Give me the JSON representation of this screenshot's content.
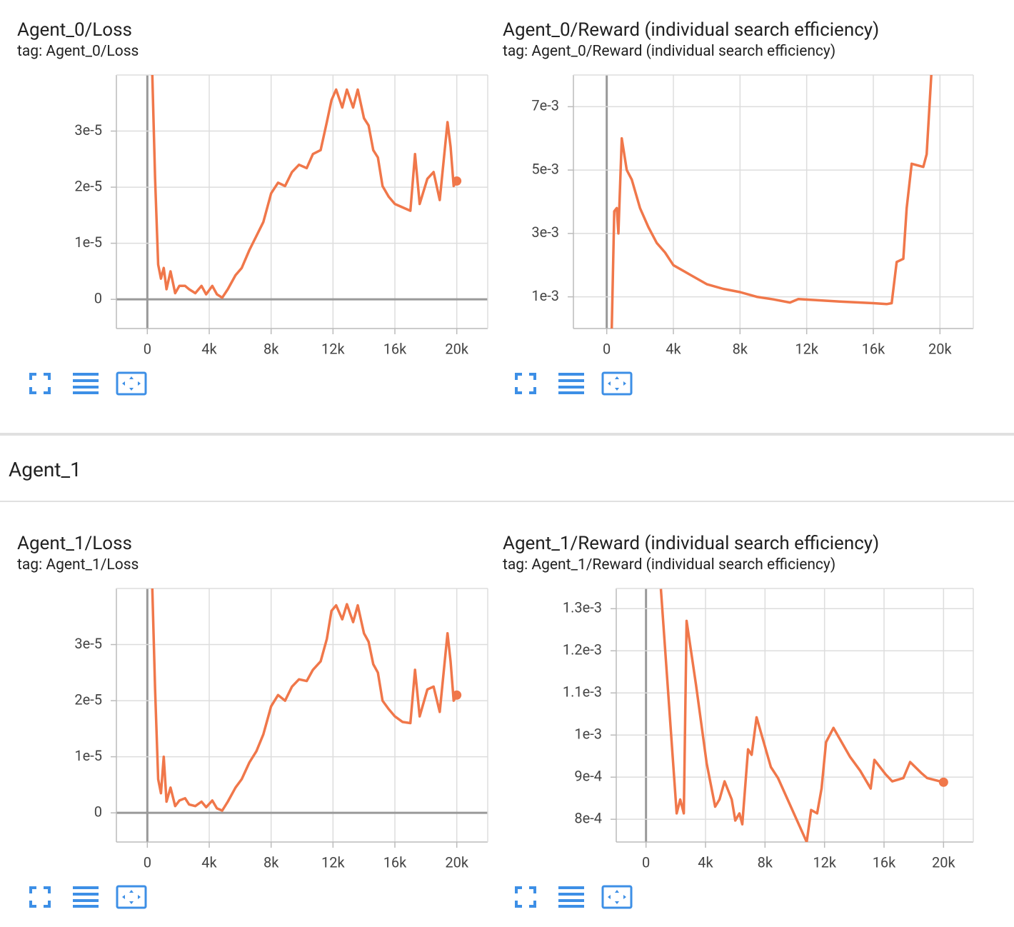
{
  "section": "Agent_1",
  "chart_data": [
    {
      "type": "line",
      "title": "Agent_0/Loss",
      "subtitle": "tag: Agent_0/Loss",
      "color": "#f0774a",
      "xlim": [
        -2000,
        22000
      ],
      "ylim": [
        -5.2e-06,
        4e-05
      ],
      "xticks": [
        0,
        {
          "value": 4000,
          "label": "4k"
        },
        {
          "value": 8000,
          "label": "8k"
        },
        {
          "value": 12000,
          "label": "12k"
        },
        {
          "value": 16000,
          "label": "16k"
        },
        {
          "value": 20000,
          "label": "20k"
        }
      ],
      "yticks": [
        0,
        {
          "value": 1e-05,
          "label": "1e-5"
        },
        {
          "value": 2e-05,
          "label": "2e-5"
        },
        {
          "value": 3e-05,
          "label": "3e-5"
        }
      ],
      "x": [
        320,
        500,
        700,
        880,
        1060,
        1240,
        1500,
        1800,
        2070,
        2440,
        2700,
        3100,
        3500,
        3800,
        4200,
        4500,
        4840,
        5200,
        5700,
        6100,
        6600,
        7050,
        7500,
        8000,
        8450,
        8900,
        9350,
        9800,
        10300,
        10700,
        11200,
        11600,
        11900,
        12200,
        12600,
        12900,
        13300,
        13600,
        14000,
        14300,
        14600,
        14900,
        15200,
        15600,
        16000,
        16500,
        17000,
        17300,
        17600,
        18100,
        18500,
        18900,
        19400,
        19600,
        19800,
        20000
      ],
      "values": [
        4e-05,
        2.15e-05,
        6.2e-06,
        3.7e-06,
        5.6e-06,
        1.8e-06,
        5e-06,
        1.1e-06,
        2.4e-06,
        2.4e-06,
        1.8e-06,
        1.1e-06,
        2.4e-06,
        9e-07,
        2.4e-06,
        9e-07,
        3e-07,
        1.8e-06,
        4.3e-06,
        5.6e-06,
        8.8e-06,
        1.13e-05,
        1.38e-05,
        1.89e-05,
        2.08e-05,
        2.02e-05,
        2.27e-05,
        2.4e-05,
        2.34e-05,
        2.59e-05,
        2.66e-05,
        3.16e-05,
        3.55e-05,
        3.74e-05,
        3.42e-05,
        3.74e-05,
        3.42e-05,
        3.74e-05,
        3.23e-05,
        3.1e-05,
        2.66e-05,
        2.53e-05,
        2.02e-05,
        1.83e-05,
        1.7e-05,
        1.64e-05,
        1.58e-05,
        2.59e-05,
        1.7e-05,
        2.15e-05,
        2.27e-05,
        1.77e-05,
        3.16e-05,
        2.72e-05,
        2.02e-05,
        2.11e-05
      ]
    },
    {
      "type": "line",
      "title": "Agent_0/Reward (individual search efficiency)",
      "subtitle": "tag: Agent_0/Reward (individual search efficiency)",
      "color": "#f0774a",
      "xlim": [
        -2000,
        22000
      ],
      "ylim": [
        0,
        0.008
      ],
      "xticks": [
        0,
        {
          "value": 4000,
          "label": "4k"
        },
        {
          "value": 8000,
          "label": "8k"
        },
        {
          "value": 12000,
          "label": "12k"
        },
        {
          "value": 16000,
          "label": "16k"
        },
        {
          "value": 20000,
          "label": "20k"
        }
      ],
      "yticks": [
        {
          "value": 0.001,
          "label": "1e-3"
        },
        {
          "value": 0.003,
          "label": "3e-3"
        },
        {
          "value": 0.005,
          "label": "5e-3"
        },
        {
          "value": 0.007,
          "label": "7e-3"
        }
      ],
      "x": [
        300,
        450,
        600,
        700,
        900,
        1200,
        1500,
        2000,
        2500,
        3000,
        3500,
        4000,
        5000,
        6000,
        7000,
        8000,
        9000,
        10000,
        11000,
        11500,
        12500,
        14000,
        16000,
        16800,
        17100,
        17400,
        17800,
        18000,
        18300,
        19000,
        19200,
        19500
      ],
      "values": [
        0,
        0.0037,
        0.0038,
        0.003,
        0.006,
        0.005,
        0.0047,
        0.0038,
        0.0032,
        0.0027,
        0.0024,
        0.002,
        0.0017,
        0.0014,
        0.00125,
        0.00115,
        0.001,
        0.00092,
        0.00082,
        0.00093,
        0.0009,
        0.00085,
        0.0008,
        0.00077,
        0.0008,
        0.0021,
        0.0022,
        0.0038,
        0.0052,
        0.0051,
        0.0055,
        0.0082
      ]
    },
    {
      "type": "line",
      "title": "Agent_1/Loss",
      "subtitle": "tag: Agent_1/Loss",
      "color": "#f0774a",
      "xlim": [
        -2000,
        22000
      ],
      "ylim": [
        -5.2e-06,
        4e-05
      ],
      "xticks": [
        0,
        {
          "value": 4000,
          "label": "4k"
        },
        {
          "value": 8000,
          "label": "8k"
        },
        {
          "value": 12000,
          "label": "12k"
        },
        {
          "value": 16000,
          "label": "16k"
        },
        {
          "value": 20000,
          "label": "20k"
        }
      ],
      "yticks": [
        0,
        {
          "value": 1e-05,
          "label": "1e-5"
        },
        {
          "value": 2e-05,
          "label": "2e-5"
        },
        {
          "value": 3e-05,
          "label": "3e-5"
        }
      ],
      "x": [
        320,
        500,
        700,
        880,
        1060,
        1240,
        1500,
        1800,
        2070,
        2440,
        2700,
        3100,
        3500,
        3800,
        4200,
        4500,
        4840,
        5200,
        5700,
        6100,
        6600,
        7050,
        7500,
        8000,
        8450,
        8900,
        9350,
        9800,
        10300,
        10700,
        11200,
        11600,
        11900,
        12200,
        12600,
        12900,
        13300,
        13600,
        14000,
        14300,
        14600,
        14900,
        15200,
        15600,
        16000,
        16500,
        17000,
        17300,
        17600,
        18100,
        18500,
        18900,
        19400,
        19600,
        19800,
        20000
      ],
      "values": [
        4e-05,
        2.2e-05,
        6e-06,
        3.5e-06,
        1e-05,
        2e-06,
        4.5e-06,
        1.2e-06,
        2.2e-06,
        2.6e-06,
        1.5e-06,
        1.2e-06,
        2e-06,
        1e-06,
        2.2e-06,
        8e-07,
        4e-07,
        2e-06,
        4.5e-06,
        6e-06,
        9e-06,
        1.1e-05,
        1.4e-05,
        1.9e-05,
        2.1e-05,
        2e-05,
        2.25e-05,
        2.38e-05,
        2.35e-05,
        2.55e-05,
        2.7e-05,
        3.1e-05,
        3.6e-05,
        3.7e-05,
        3.45e-05,
        3.72e-05,
        3.4e-05,
        3.7e-05,
        3.2e-05,
        3.05e-05,
        2.65e-05,
        2.5e-05,
        2e-05,
        1.85e-05,
        1.72e-05,
        1.62e-05,
        1.6e-05,
        2.55e-05,
        1.72e-05,
        2.2e-05,
        2.25e-05,
        1.8e-05,
        3.2e-05,
        2.7e-05,
        2e-05,
        2.1e-05
      ]
    },
    {
      "type": "line",
      "title": "Agent_1/Reward (individual search efficiency)",
      "subtitle": "tag: Agent_1/Reward (individual search efficiency)",
      "color": "#f0774a",
      "xlim": [
        -2000,
        22000
      ],
      "ylim": [
        0.000746,
        0.001348
      ],
      "xticks": [
        0,
        {
          "value": 4000,
          "label": "4k"
        },
        {
          "value": 8000,
          "label": "8k"
        },
        {
          "value": 12000,
          "label": "12k"
        },
        {
          "value": 16000,
          "label": "16k"
        },
        {
          "value": 20000,
          "label": "20k"
        }
      ],
      "yticks": [
        {
          "value": 0.0008,
          "label": "8e-4"
        },
        {
          "value": 0.0009,
          "label": "9e-4"
        },
        {
          "value": 0.001,
          "label": "1e-3"
        },
        {
          "value": 0.0011,
          "label": "1.1e-3"
        },
        {
          "value": 0.0012,
          "label": "1.2e-3"
        },
        {
          "value": 0.0013,
          "label": "1.3e-3"
        }
      ],
      "x": [
        1000,
        2060,
        2300,
        2540,
        2730,
        3360,
        4080,
        4650,
        4940,
        5280,
        5760,
        6000,
        6280,
        6470,
        6860,
        7100,
        7430,
        7910,
        8390,
        8870,
        10800,
        11100,
        11500,
        11800,
        12100,
        12600,
        13700,
        14400,
        15100,
        15350,
        16100,
        16550,
        17300,
        17750,
        18500,
        18900,
        20000
      ],
      "values": [
        0.001347,
        0.000814,
        0.000847,
        0.000814,
        0.001271,
        0.001119,
        0.000932,
        0.00083,
        0.000847,
        0.00089,
        0.000847,
        0.000797,
        0.000814,
        0.000788,
        0.000966,
        0.000953,
        0.001042,
        0.000983,
        0.000924,
        0.000898,
        0.000746,
        0.000822,
        0.000814,
        0.000873,
        0.000983,
        0.001017,
        0.000949,
        0.000915,
        0.000873,
        0.000941,
        0.000907,
        0.00089,
        0.000898,
        0.000936,
        0.00091,
        0.000898,
        0.000888
      ]
    }
  ]
}
